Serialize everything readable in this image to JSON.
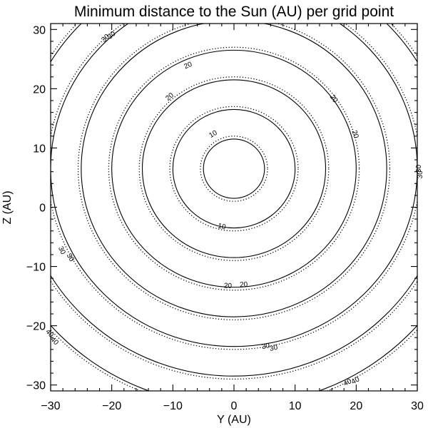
{
  "chart_data": {
    "type": "contour",
    "title": "Minimum distance to the Sun (AU) per grid point",
    "xlabel": "Y (AU)",
    "ylabel": "Z (AU)",
    "xlim": [
      -30,
      30
    ],
    "ylim": [
      -31,
      31
    ],
    "x_ticks": [
      -30,
      -20,
      -10,
      0,
      10,
      20,
      30
    ],
    "y_ticks": [
      -30,
      -20,
      -10,
      0,
      10,
      20,
      30
    ],
    "x_tick_labels": [
      "−30",
      "−20",
      "−10",
      "0",
      "10",
      "20",
      "30"
    ],
    "y_tick_labels": [
      "−30",
      "−20",
      "−10",
      "0",
      "10",
      "20",
      "30"
    ],
    "center": [
      0,
      6.5
    ],
    "series": [
      {
        "style": "solid",
        "radii": [
          5,
          10,
          15,
          20,
          25,
          30,
          35,
          40
        ]
      },
      {
        "style": "dotted",
        "radii": [
          5.5,
          10.5,
          15.5,
          20.5,
          25.5,
          30.5,
          35.5,
          40.5
        ]
      }
    ],
    "contour_labels": [
      {
        "text": "10",
        "x": -2,
        "y": -3.3
      },
      {
        "text": "10",
        "x": -3.4,
        "y": 12.3
      },
      {
        "text": "20",
        "x": -10.5,
        "y": 18.6
      },
      {
        "text": "20",
        "x": -7.5,
        "y": 23.9
      },
      {
        "text": "20",
        "x": 16.3,
        "y": 18.3
      },
      {
        "text": "20",
        "x": 19.8,
        "y": 12.3
      },
      {
        "text": "20",
        "x": -1,
        "y": -13.3
      },
      {
        "text": "20",
        "x": 1.6,
        "y": -13.1
      },
      {
        "text": "30",
        "x": -21,
        "y": 28.5
      },
      {
        "text": "30",
        "x": -20,
        "y": 29
      },
      {
        "text": "30",
        "x": 30.3,
        "y": 6.5
      },
      {
        "text": "30",
        "x": 30.5,
        "y": 5.5
      },
      {
        "text": "30",
        "x": -28.2,
        "y": -7.3
      },
      {
        "text": "30",
        "x": -26.8,
        "y": -8.5
      },
      {
        "text": "30",
        "x": 5.2,
        "y": -23.5
      },
      {
        "text": "30",
        "x": 6.5,
        "y": -23.8
      },
      {
        "text": "40",
        "x": -30.2,
        "y": -21.3
      },
      {
        "text": "40",
        "x": -29.4,
        "y": -22.6
      },
      {
        "text": "40",
        "x": 18.6,
        "y": -29.6
      },
      {
        "text": "40",
        "x": 19.9,
        "y": -29.3
      }
    ]
  }
}
